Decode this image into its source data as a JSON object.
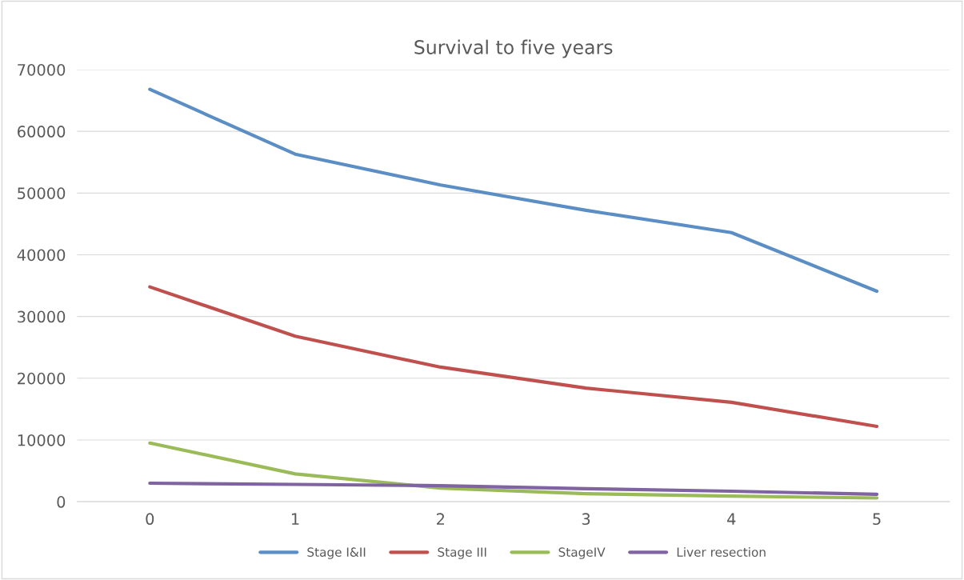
{
  "chart_data": {
    "type": "line",
    "title": "Survival to five years",
    "categories": [
      "0",
      "1",
      "2",
      "3",
      "4",
      "5"
    ],
    "series": [
      {
        "name": "Stage I&II",
        "color": "#5b8ec4",
        "values": [
          66800,
          56300,
          51300,
          47200,
          43600,
          34100
        ]
      },
      {
        "name": "Stage III",
        "color": "#c0504d",
        "values": [
          34800,
          26800,
          21800,
          18400,
          16100,
          12200
        ]
      },
      {
        "name": "StageIV",
        "color": "#9bbb59",
        "values": [
          9500,
          4500,
          2200,
          1300,
          900,
          600
        ]
      },
      {
        "name": "Liver resection",
        "color": "#8064a2",
        "values": [
          3000,
          2800,
          2600,
          2100,
          1700,
          1200
        ]
      }
    ],
    "ylim": [
      0,
      70000
    ],
    "yticks": [
      0,
      10000,
      20000,
      30000,
      40000,
      50000,
      60000,
      70000
    ],
    "grid": "y",
    "legend": "bottom",
    "marker": "none",
    "line_style": "solid"
  }
}
